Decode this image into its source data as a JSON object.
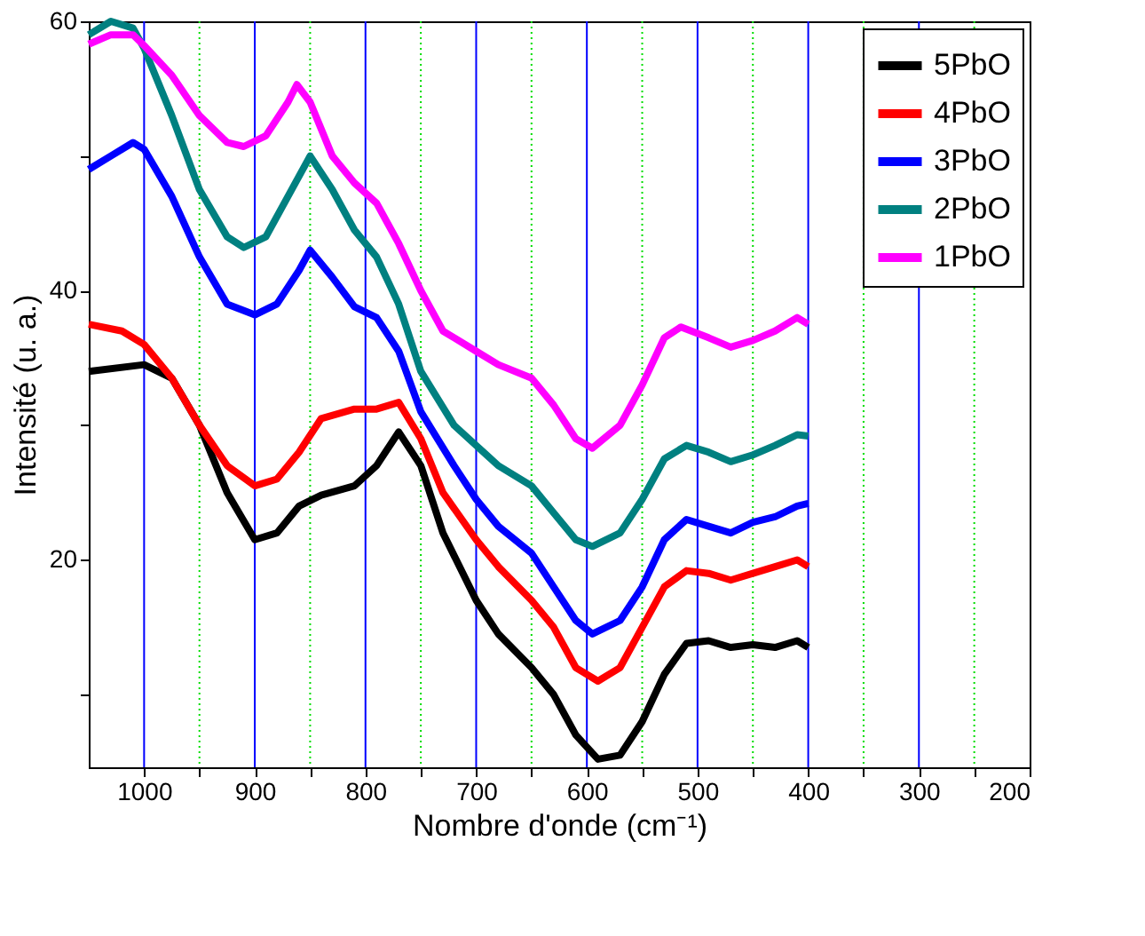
{
  "chart_data": {
    "type": "line",
    "xlabel": "Nombre d'onde (cm⁻¹)",
    "ylabel": "Intensité (u. a.)",
    "xlim": [
      1050,
      200
    ],
    "ylim": [
      4.6,
      60
    ],
    "xticks": [
      1000,
      {
        "value": 950,
        "label": null
      },
      900,
      {
        "value": 850,
        "label": null
      },
      800,
      {
        "value": 750,
        "label": null
      },
      700,
      {
        "value": 650,
        "label": null
      },
      600,
      {
        "value": 550,
        "label": null
      },
      500,
      {
        "value": 450,
        "label": null
      },
      400,
      {
        "value": 350,
        "label": null
      },
      300,
      {
        "value": 250,
        "label": null
      },
      200
    ],
    "yticks": [
      {
        "value": 10,
        "label": null
      },
      20,
      {
        "value": 30,
        "label": null
      },
      40,
      {
        "value": 50,
        "label": null
      },
      60
    ],
    "grid": "x",
    "legend": "top right",
    "line_style": "solid",
    "marker": "none",
    "series": [
      {
        "name": "5PbO",
        "color": "#000000",
        "x": [
          1050,
          1000,
          975,
          950,
          925,
          900,
          880,
          860,
          840,
          810,
          790,
          770,
          750,
          730,
          700,
          680,
          650,
          630,
          610,
          590,
          570,
          550,
          530,
          510,
          490,
          470,
          450,
          430,
          410,
          400
        ],
        "values": [
          34,
          34.5,
          33.5,
          30,
          25,
          21.5,
          22,
          24,
          24.8,
          25.5,
          27,
          29.5,
          27,
          22,
          17,
          14.5,
          12,
          10,
          7,
          5.2,
          5.5,
          8,
          11.5,
          13.8,
          14,
          13.5,
          13.7,
          13.5,
          14,
          13.5
        ]
      },
      {
        "name": "4PbO",
        "color": "#ff0000",
        "x": [
          1050,
          1020,
          1000,
          975,
          950,
          925,
          900,
          880,
          860,
          840,
          810,
          790,
          770,
          750,
          730,
          700,
          680,
          650,
          630,
          610,
          590,
          570,
          550,
          530,
          510,
          490,
          470,
          450,
          430,
          410,
          400
        ],
        "values": [
          37.5,
          37,
          36,
          33.5,
          30,
          27,
          25.5,
          26,
          28,
          30.5,
          31.2,
          31.2,
          31.7,
          29,
          25,
          21.5,
          19.5,
          17,
          15,
          12,
          11,
          12,
          15,
          18,
          19.2,
          19,
          18.5,
          19,
          19.5,
          20,
          19.5
        ]
      },
      {
        "name": "3PbO",
        "color": "#0000ff",
        "x": [
          1050,
          1030,
          1010,
          1000,
          975,
          950,
          925,
          900,
          880,
          860,
          850,
          830,
          810,
          790,
          770,
          750,
          720,
          700,
          680,
          650,
          630,
          610,
          595,
          570,
          550,
          530,
          510,
          490,
          470,
          450,
          430,
          410,
          400
        ],
        "values": [
          49,
          50,
          51,
          50.5,
          47,
          42.5,
          39,
          38.2,
          39,
          41.5,
          43,
          41,
          38.8,
          38,
          35.5,
          31,
          27,
          24.5,
          22.5,
          20.5,
          18,
          15.5,
          14.5,
          15.5,
          18,
          21.5,
          23,
          22.5,
          22,
          22.8,
          23.2,
          24,
          24.2
        ]
      },
      {
        "name": "2PbO",
        "color": "#008080",
        "x": [
          1050,
          1030,
          1010,
          1000,
          975,
          950,
          925,
          910,
          890,
          870,
          850,
          830,
          810,
          790,
          770,
          750,
          720,
          700,
          680,
          650,
          630,
          610,
          595,
          570,
          550,
          530,
          510,
          490,
          470,
          450,
          430,
          410,
          400
        ],
        "values": [
          59,
          60,
          59.5,
          58,
          53,
          47.5,
          44,
          43.2,
          44,
          47,
          50,
          47.5,
          44.5,
          42.5,
          39,
          34,
          30,
          28.5,
          27,
          25.5,
          23.5,
          21.5,
          21,
          22,
          24.5,
          27.5,
          28.5,
          28,
          27.3,
          27.8,
          28.5,
          29.3,
          29.2
        ]
      },
      {
        "name": "1PbO",
        "color": "#ff00ff",
        "x": [
          1050,
          1030,
          1010,
          1000,
          975,
          950,
          925,
          910,
          890,
          870,
          862,
          850,
          830,
          810,
          790,
          770,
          750,
          730,
          700,
          680,
          650,
          630,
          610,
          595,
          570,
          550,
          530,
          515,
          490,
          470,
          450,
          430,
          410,
          400
        ],
        "values": [
          58.3,
          59,
          59,
          58.2,
          56,
          53,
          51,
          50.7,
          51.5,
          54,
          55.3,
          54,
          50,
          48,
          46.5,
          43.5,
          40,
          37,
          35.5,
          34.5,
          33.5,
          31.5,
          29,
          28.3,
          30,
          33,
          36.5,
          37.3,
          36.5,
          35.8,
          36.3,
          37,
          38,
          37.5
        ]
      }
    ]
  }
}
